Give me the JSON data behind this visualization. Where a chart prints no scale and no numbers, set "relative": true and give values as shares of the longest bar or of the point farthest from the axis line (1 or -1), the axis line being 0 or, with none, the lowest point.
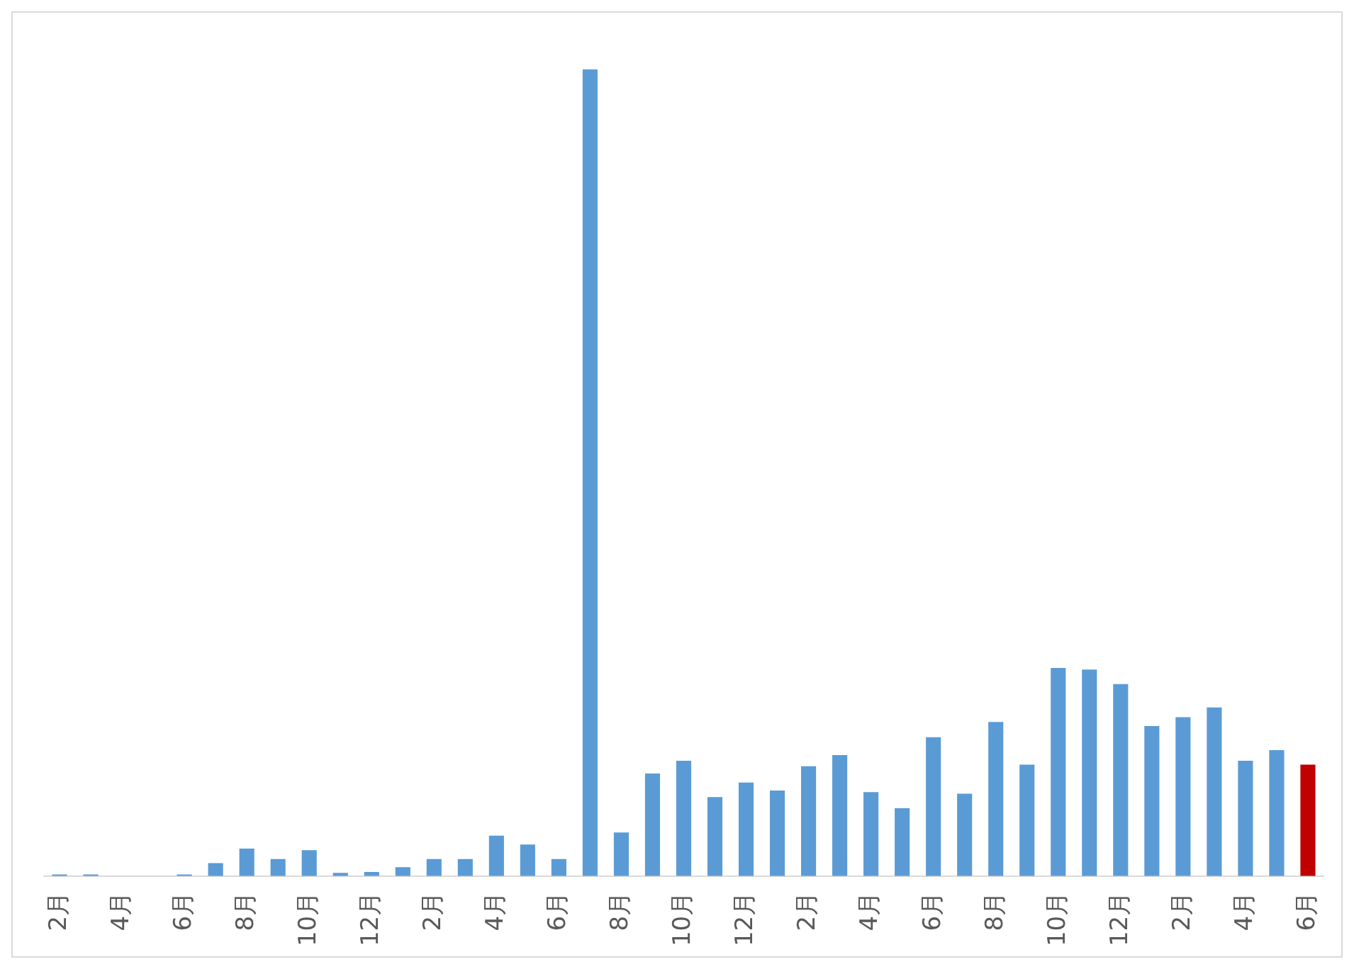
{
  "chart_data": {
    "type": "bar",
    "relative": true,
    "tick_labels": "x",
    "grid": false,
    "legend": false,
    "categories": [
      "2月",
      null,
      "4月",
      null,
      "6月",
      null,
      "8月",
      null,
      "10月",
      null,
      "12月",
      null,
      "2月",
      null,
      "4月",
      null,
      "6月",
      null,
      "8月",
      null,
      "10月",
      null,
      "12月",
      null,
      "2月",
      null,
      "4月",
      null,
      "6月",
      null,
      "8月",
      null,
      "10月",
      null,
      "12月",
      null,
      "2月",
      null,
      "4月",
      null,
      "6月"
    ],
    "values": [
      0.002,
      0.002,
      0,
      0,
      0.002,
      0.016,
      0.034,
      0.021,
      0.032,
      0.004,
      0.005,
      0.011,
      0.021,
      0.021,
      0.05,
      0.039,
      0.021,
      1,
      0.054,
      0.127,
      0.143,
      0.098,
      0.116,
      0.106,
      0.136,
      0.15,
      0.104,
      0.084,
      0.172,
      0.102,
      0.191,
      0.138,
      0.258,
      0.256,
      0.238,
      0.186,
      0.197,
      0.209,
      0.143,
      0.156,
      0.138
    ],
    "colors": [
      "#5b9bd5",
      "#5b9bd5",
      "#5b9bd5",
      "#5b9bd5",
      "#5b9bd5",
      "#5b9bd5",
      "#5b9bd5",
      "#5b9bd5",
      "#5b9bd5",
      "#5b9bd5",
      "#5b9bd5",
      "#5b9bd5",
      "#5b9bd5",
      "#5b9bd5",
      "#5b9bd5",
      "#5b9bd5",
      "#5b9bd5",
      "#5b9bd5",
      "#5b9bd5",
      "#5b9bd5",
      "#5b9bd5",
      "#5b9bd5",
      "#5b9bd5",
      "#5b9bd5",
      "#5b9bd5",
      "#5b9bd5",
      "#5b9bd5",
      "#5b9bd5",
      "#5b9bd5",
      "#5b9bd5",
      "#5b9bd5",
      "#5b9bd5",
      "#5b9bd5",
      "#5b9bd5",
      "#5b9bd5",
      "#5b9bd5",
      "#5b9bd5",
      "#5b9bd5",
      "#5b9bd5",
      "#5b9bd5",
      "#c00000"
    ]
  }
}
